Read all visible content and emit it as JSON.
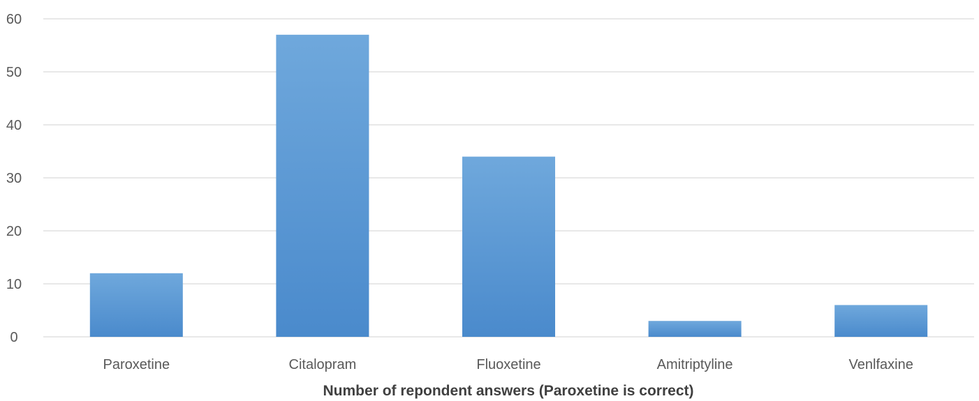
{
  "chart_data": {
    "type": "bar",
    "title": "",
    "xlabel": "Number of repondent  answers (Paroxetine is correct)",
    "ylabel": "",
    "categories": [
      "Paroxetine",
      "Citalopram",
      "Fluoxetine",
      "Amitriptyline",
      "Venlfaxine"
    ],
    "values": [
      12,
      57,
      34,
      3,
      6
    ],
    "ylim": [
      0,
      60
    ],
    "yticks": [
      "0",
      "10",
      "20",
      "30",
      "40",
      "50",
      "60"
    ],
    "grid": true,
    "legend": "none",
    "colors": {
      "bar_top": "#6fa8dc",
      "bar_bottom": "#4a8acc",
      "grid": "#d9d9d9",
      "tick_text": "#595959",
      "axis_title": "#404040"
    }
  }
}
